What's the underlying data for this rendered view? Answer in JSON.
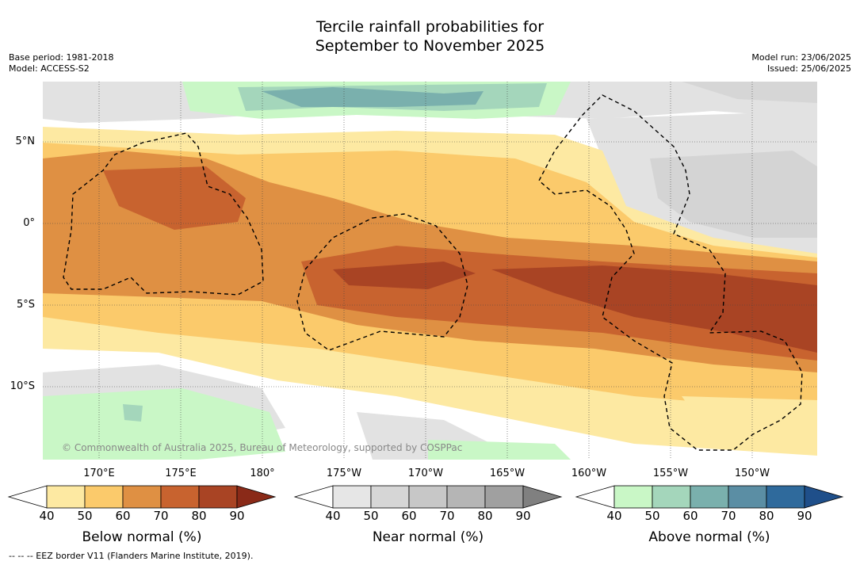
{
  "title_line1": "Tercile rainfall probabilities for",
  "title_line2": "September to November 2025",
  "meta": {
    "base_period": "Base period: 1981-2018",
    "model": "Model: ACCESS-S2",
    "model_run": "Model run: 23/06/2025",
    "issued": "Issued: 25/06/2025"
  },
  "axes": {
    "lat_labels": [
      "5°N",
      "0°",
      "5°S",
      "10°S"
    ],
    "lon_labels": [
      "170°E",
      "175°E",
      "180°",
      "175°W",
      "170°W",
      "165°W",
      "160°W",
      "155°W",
      "150°W"
    ]
  },
  "copyright": "© Commonwealth of Australia 2025, Bureau of Meteorology, supported by COSPPac",
  "colorbars": [
    {
      "title": "Below normal (%)",
      "ticks": [
        "40",
        "50",
        "60",
        "70",
        "80",
        "90"
      ],
      "colors": [
        "#ffffff",
        "#fde9a2",
        "#fbca6b",
        "#df9043",
        "#c8632f",
        "#a94424",
        "#8a2a18"
      ]
    },
    {
      "title": "Near normal (%)",
      "ticks": [
        "40",
        "50",
        "60",
        "70",
        "80",
        "90"
      ],
      "colors": [
        "#ffffff",
        "#e6e6e6",
        "#d6d6d6",
        "#c7c7c7",
        "#b5b5b5",
        "#a0a0a0",
        "#808080"
      ]
    },
    {
      "title": "Above normal (%)",
      "ticks": [
        "40",
        "50",
        "60",
        "70",
        "80",
        "90"
      ],
      "colors": [
        "#ffffff",
        "#c9f7c6",
        "#a4d6bb",
        "#7ab0ad",
        "#5b8ea4",
        "#2f6a9c",
        "#1f4f8a"
      ]
    }
  ],
  "footer": "--  --  -- EEZ border V11 (Flanders Marine Institute, 2019)."
}
